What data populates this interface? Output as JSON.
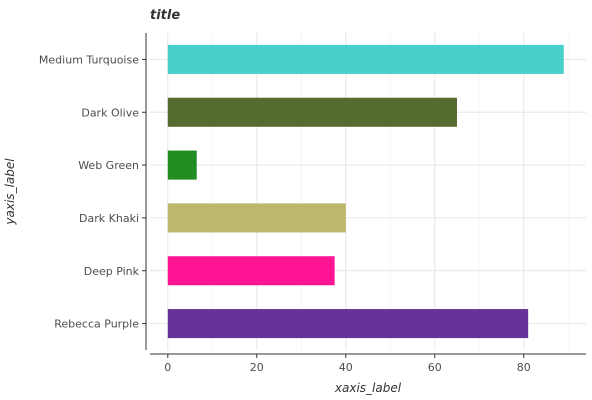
{
  "chart_data": {
    "type": "bar",
    "orientation": "horizontal",
    "title": "title",
    "xlabel": "xaxis_label",
    "ylabel": "yaxis_label",
    "categories": [
      "Rebecca Purple",
      "Deep Pink",
      "Dark Khaki",
      "Web Green",
      "Dark Olive",
      "Medium Turquoise"
    ],
    "values": [
      81,
      37.5,
      40,
      6.5,
      65,
      89
    ],
    "colors": [
      "#663399",
      "#ff1493",
      "#bdb76b",
      "#228b22",
      "#556b2f",
      "#48d1cc"
    ],
    "xlim": [
      -4,
      94
    ],
    "xticks": [
      0,
      20,
      40,
      60,
      80
    ],
    "grid": true
  }
}
